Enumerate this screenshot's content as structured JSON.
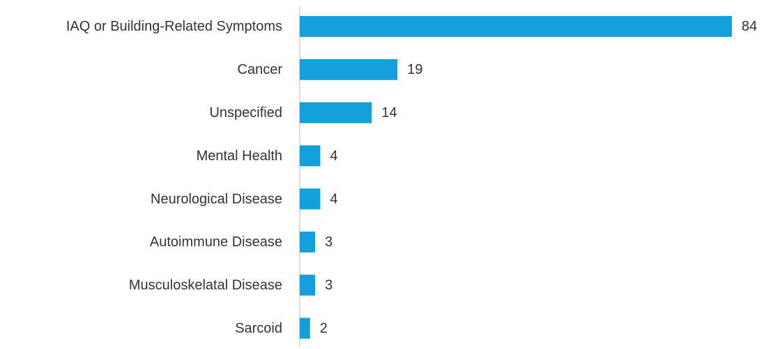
{
  "chart_data": {
    "type": "barh",
    "categories": [
      "IAQ or Building-Related Symptoms",
      "Cancer",
      "Unspecified",
      "Mental Health",
      "Neurological Disease",
      "Autoimmune Disease",
      "Musculoskelatal Disease",
      "Sarcoid"
    ],
    "values": [
      84,
      19,
      14,
      4,
      4,
      3,
      3,
      2
    ],
    "color": "#139fdb"
  }
}
